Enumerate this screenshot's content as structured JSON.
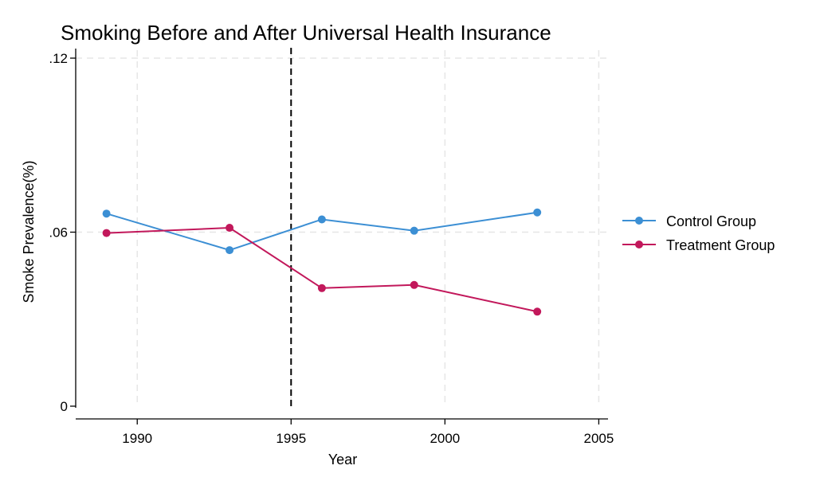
{
  "chart_data": {
    "type": "line",
    "title": "Smoking Before and After Universal Health Insurance",
    "xlabel": "Year",
    "ylabel": "Smoke Prevalence(%)",
    "xlim": [
      1988,
      2005.3
    ],
    "ylim": [
      0,
      0.12
    ],
    "x_ticks": [
      1990,
      1995,
      2000,
      2005
    ],
    "y_ticks": [
      {
        "value": 0,
        "label": "0"
      },
      {
        "value": 0.06,
        "label": ".06"
      },
      {
        "value": 0.12,
        "label": ".12"
      }
    ],
    "grid": true,
    "reference_line": {
      "axis": "x",
      "value": 1995,
      "style": "dashed",
      "color": "#000000"
    },
    "legend_position": "right",
    "series": [
      {
        "name": "Control Group",
        "color": "#3c8fd4",
        "points": [
          {
            "x": 1989,
            "y": 0.0664
          },
          {
            "x": 1993,
            "y": 0.0538
          },
          {
            "x": 1996,
            "y": 0.0644
          },
          {
            "x": 1999,
            "y": 0.0605
          },
          {
            "x": 2003,
            "y": 0.0668
          }
        ]
      },
      {
        "name": "Treatment Group",
        "color": "#c2185b",
        "points": [
          {
            "x": 1989,
            "y": 0.0597
          },
          {
            "x": 1993,
            "y": 0.0615
          },
          {
            "x": 1996,
            "y": 0.0407
          },
          {
            "x": 1999,
            "y": 0.0418
          },
          {
            "x": 2003,
            "y": 0.0326
          }
        ]
      }
    ]
  }
}
